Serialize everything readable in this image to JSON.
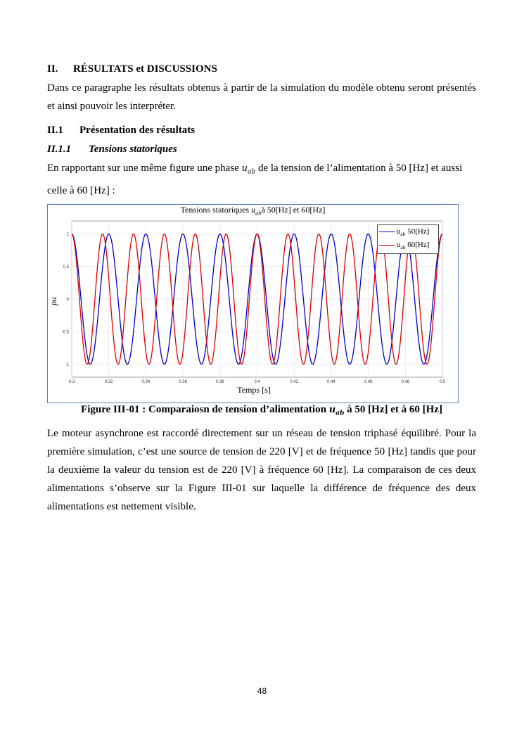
{
  "section": {
    "number": "II.",
    "title": "RÉSULTATS et DISCUSSIONS"
  },
  "intro": "Dans ce paragraphe les résultats obtenus à partir de la simulation du modèle obtenu seront présentés et ainsi pouvoir les interpréter.",
  "subsection": {
    "number": "II.1",
    "title": "Présentation des résultats"
  },
  "subsubsection": {
    "number": "II.1.1",
    "title": "Tensions statoriques"
  },
  "para1": {
    "before": "En rapportant sur une même figure une phase ",
    "var": "u",
    "sub": "ab",
    "after": " de la tension de l’alimentation à 50 [Hz] et aussi celle à 60 [Hz] :"
  },
  "caption": {
    "before": "Figure III-01 : Comparaiosn de tension d’alimentation ",
    "var": "u",
    "sub": "ab",
    "after": " à 50 [Hz] et à 60 [Hz]"
  },
  "para2": "Le moteur asynchrone est raccordé directement sur un réseau de tension triphasé équilibré. Pour la première simulation, c’est une source de tension de 220 [V] et de fréquence 50 [Hz] tandis que pour la deuxième la valeur du tension est de 220 [V] à fréquence 60 [Hz]. La comparaison de ces deux alimentations s’observe sur la Figure III-01 sur laquelle la différence de fréquence des deux alimentations est nettement visible.",
  "page_number": "48",
  "chart_data": {
    "type": "line",
    "title": {
      "before": "Tensions statoriques ",
      "var": "u",
      "sub": "ab",
      "after": "à 50[Hz] et 60[Hz]"
    },
    "xlabel": "Temps [s]",
    "ylabel": "pu",
    "xlim": [
      0.3,
      0.5
    ],
    "ylim": [
      -1.2,
      1.2
    ],
    "xticks": [
      "0.3",
      "0.32",
      "0.34",
      "0.36",
      "0.38",
      "0.4",
      "0.42",
      "0.44",
      "0.46",
      "0.48",
      "0.5"
    ],
    "yticks": [
      "1",
      "0.5",
      "0",
      "-0.5",
      "-1"
    ],
    "grid": true,
    "legend_placement": "top-right",
    "series": [
      {
        "name": "u_ab 50[Hz]",
        "legend": {
          "var": "u",
          "sub": "ab",
          "label": "50[Hz]"
        },
        "function": "cos",
        "frequency_hz": 50,
        "amplitude": 1,
        "color": "#0000cc"
      },
      {
        "name": "u_ab 60[Hz]",
        "legend": {
          "var": "u",
          "sub": "ab",
          "label": "60[Hz]"
        },
        "function": "cos",
        "frequency_hz": 60,
        "amplitude": 1,
        "color": "#dd0000"
      }
    ]
  }
}
